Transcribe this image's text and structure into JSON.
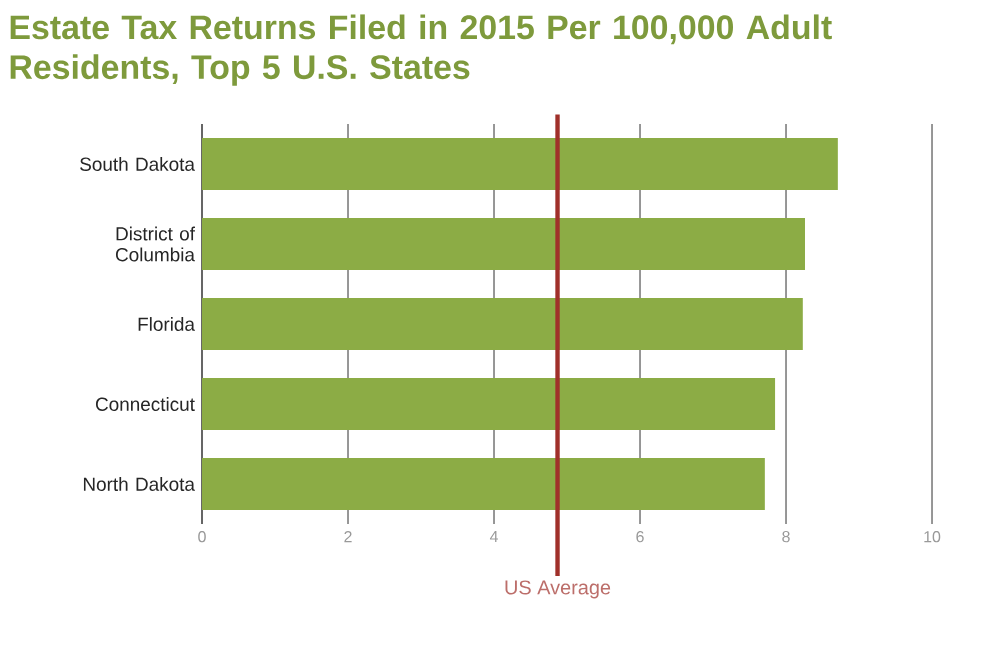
{
  "chart_data": {
    "type": "bar",
    "orientation": "horizontal",
    "title": "Estate Tax Returns Filed in 2015 Per 100,000 Adult Residents, Top 5 U.S. States",
    "categories": [
      "South Dakota",
      "District of Columbia",
      "Florida",
      "Connecticut",
      "North Dakota"
    ],
    "values": [
      8.71,
      8.26,
      8.23,
      7.85,
      7.71
    ],
    "color": "#8cac45",
    "xlim": [
      0,
      10
    ],
    "xticks": [
      0,
      2,
      4,
      6,
      8,
      10
    ],
    "grid": "x",
    "ref_lines": [
      {
        "axis": "x",
        "value": 4.87,
        "label": "US Average",
        "color": "#a0302a"
      }
    ]
  }
}
